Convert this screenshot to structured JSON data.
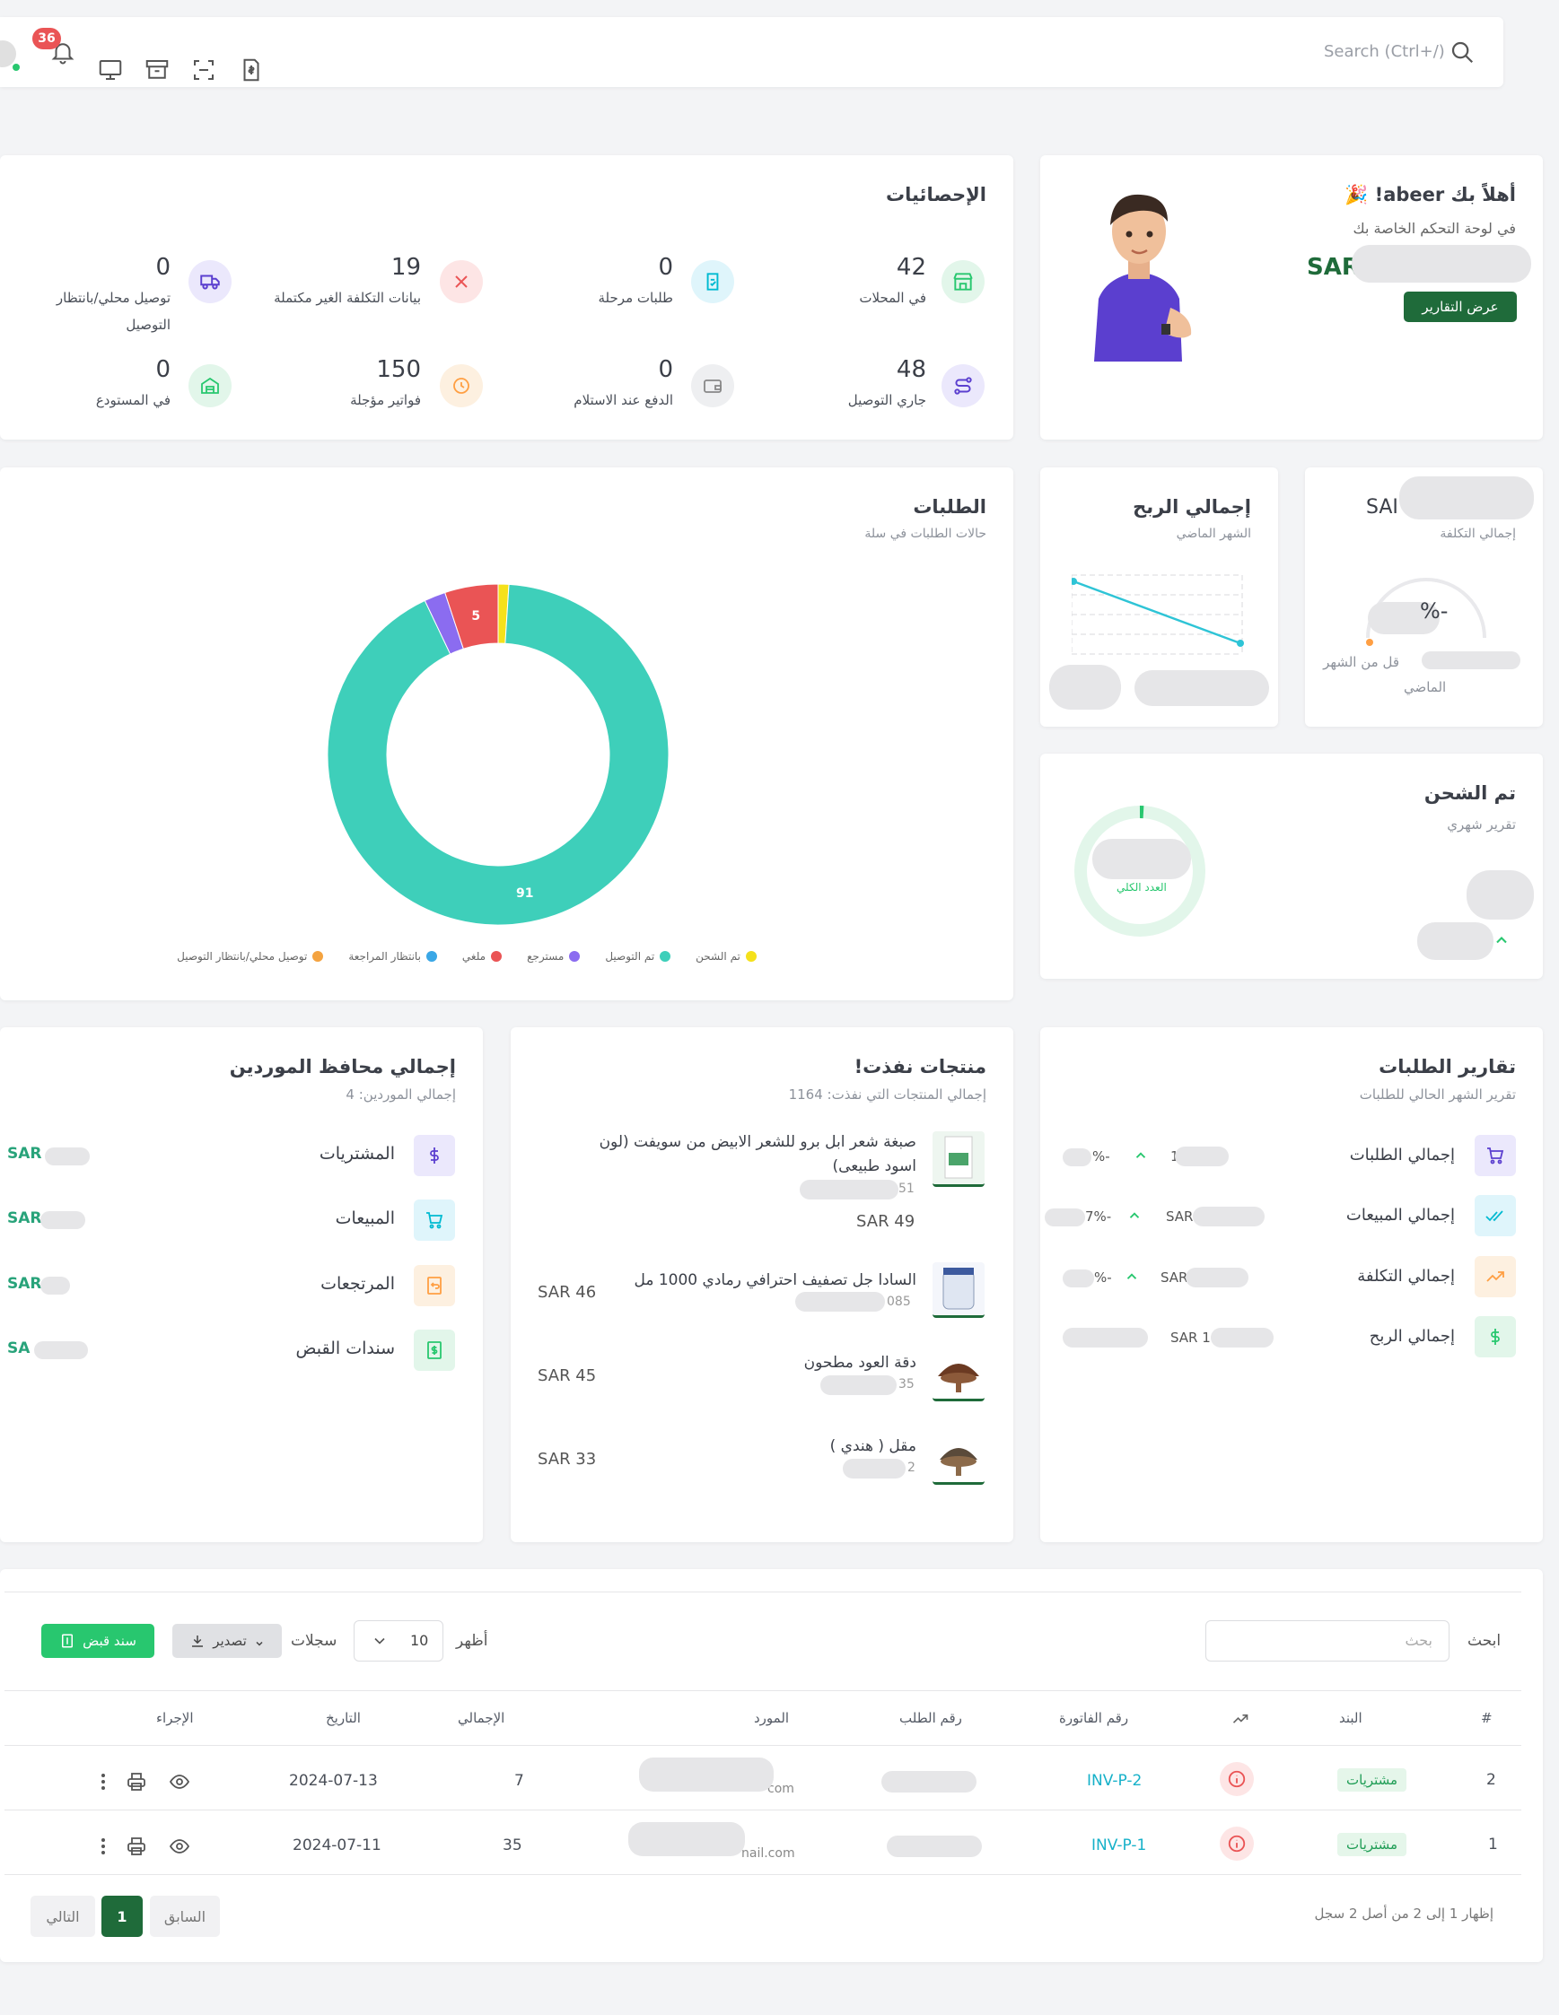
{
  "topbar": {
    "search_placeholder": "Search (Ctrl+/)",
    "notif_count": "36"
  },
  "welcome": {
    "title": "أهلاً بك abeer! 🎉",
    "subtitle": "في لوحة التحكم الخاصة بك",
    "amount_prefix": "SAR",
    "button": "عرض التقارير"
  },
  "stats": {
    "title": "الإحصائيات",
    "items": [
      {
        "value": "42",
        "label": "في المحلات"
      },
      {
        "value": "0",
        "label": "طلبات مرحلة"
      },
      {
        "value": "19",
        "label": "بيانات التكلفة الغير مكتملة"
      },
      {
        "value": "0",
        "label": "توصيل محلي/بانتظار",
        "label2": "التوصيل"
      },
      {
        "value": "48",
        "label": "جاري التوصيل"
      },
      {
        "value": "0",
        "label": "الدفع عند الاستلام"
      },
      {
        "value": "150",
        "label": "فواتير مؤجلة"
      },
      {
        "value": "0",
        "label": "في المستودع"
      }
    ]
  },
  "cost_card": {
    "amount_prefix": "SAI",
    "label": "إجمالي التكلفة",
    "gauge_text": "%-",
    "note1": "قل من الشهر",
    "note2": "الماضي"
  },
  "profit_card": {
    "title": "إجمالي الربح",
    "subtitle": "الشهر الماضي"
  },
  "shipped_card": {
    "title": "تم الشحن",
    "subtitle": "تقرير شهري",
    "ring_label": "العدد الكلي"
  },
  "orders_chart": {
    "title": "الطلبات",
    "subtitle": "حالات الطلبات في سلة"
  },
  "chart_data": {
    "type": "pie",
    "categories": [
      "تم الشحن",
      "تم التوصيل",
      "مسترجع",
      "ملغي",
      "بانتظار المراجعة",
      "توصيل محلي/بانتظار التوصيل"
    ],
    "values": [
      1,
      91,
      2,
      5,
      0,
      0
    ],
    "data_labels": [
      "",
      "91",
      "",
      "5",
      "",
      ""
    ],
    "colors": [
      "#f5e11b",
      "#3ecfba",
      "#8b6cf0",
      "#ea5455",
      "#3aa7e6",
      "#f4a340"
    ],
    "legend": "bottom"
  },
  "order_reports": {
    "title": "تقارير الطلبات",
    "subtitle": "تقرير الشهر الحالي للطلبات",
    "rows": [
      {
        "label": "إجمالي الطلبات",
        "value": "1",
        "change": "%-"
      },
      {
        "label": "إجمالي المبيعات",
        "value": "SAR",
        "change": "7%-"
      },
      {
        "label": "إجمالي التكلفة",
        "value": "SAR",
        "change": "%-"
      },
      {
        "label": "إجمالي الربح",
        "value": "SAR 1",
        "change": ""
      }
    ]
  },
  "out_of_stock": {
    "title": "منتجات نفذت!",
    "subtitle": "إجمالي المنتجات التي نفذت: 1164",
    "products": [
      {
        "name": "صبغة شعر ابل برو للشعر الابيض من سويفت (لون",
        "name2": "اسود طبيعى)",
        "code": "51",
        "price": "SAR 49"
      },
      {
        "name": "السادا جل تصفيف احترافي رمادي 1000 مل",
        "code": "085",
        "price": "SAR 46"
      },
      {
        "name": "دقة العود مطحون",
        "code": "35",
        "price": "SAR 45"
      },
      {
        "name": "مقل ( هندي )",
        "code": "2",
        "price": "SAR 33"
      }
    ]
  },
  "suppliers": {
    "title": "إجمالي محافظ الموردين",
    "subtitle": "إجمالي الموردين: 4",
    "rows": [
      {
        "label": "المشتريات",
        "value": "SAR"
      },
      {
        "label": "المبيعات",
        "value": "SAR"
      },
      {
        "label": "المرتجعات",
        "value": "SAR"
      },
      {
        "label": "سندات القبض",
        "value": "SA"
      }
    ]
  },
  "table": {
    "search_label": "ابحث",
    "search_placeholder": "بحث",
    "show_label": "أظهر",
    "page_size": "10",
    "records_label": "سجلات",
    "export_label": "تصدير",
    "receipt_label": "سند قبض",
    "columns": [
      "#",
      "البند",
      "",
      "رقم الفاتورة",
      "رقم الطلب",
      "المورد",
      "الإجمالي",
      "التاريخ",
      "الإجراء"
    ],
    "rows": [
      {
        "num": "2",
        "type": "مشتريات",
        "invoice": "INV-P-2",
        "supplier": "com",
        "total": "7",
        "date": "2024-07-13"
      },
      {
        "num": "1",
        "type": "مشتريات",
        "invoice": "INV-P-1",
        "supplier": "nail.com",
        "total": "35",
        "date": "2024-07-11"
      }
    ],
    "footer_text": "إظهار 1 إلى 2 من أصل 2 سجل",
    "prev": "السابق",
    "page": "1",
    "next": "التالي"
  },
  "colors": {
    "primary": "#1f6b3a",
    "accent": "#3ecfba",
    "success": "#28c76f"
  }
}
